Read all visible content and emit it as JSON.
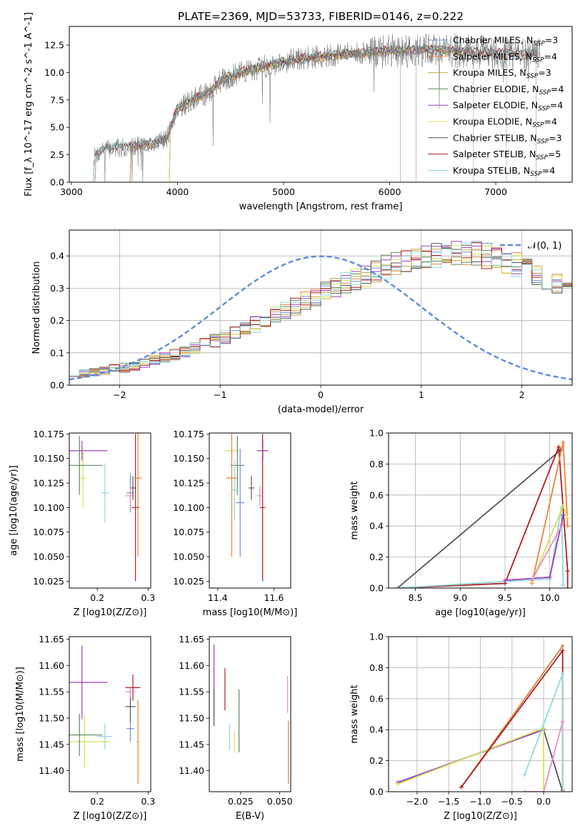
{
  "figure_title": "PLATE=2369, MJD=53733, FIBERID=0146, z=0.222",
  "colors": {
    "Chabrier MILES": "#6f8fd6",
    "Salpeter MILES": "#e8833a",
    "Kroupa MILES": "#c9a44a",
    "Chabrier ELODIE": "#5f8a5f",
    "Salpeter ELODIE": "#9a3fc3",
    "Kroupa ELODIE": "#d6e05a",
    "Chabrier STELIB": "#555555",
    "Salpeter STELIB": "#b01e1e",
    "Kroupa STELIB": "#8fd8d8",
    "extra_pink": "#e58fc0",
    "extra_orange": "#d2843f"
  },
  "chart_data": [
    {
      "id": "spectrum",
      "type": "line",
      "xlabel": "wavelength [Angstrom, rest frame]",
      "ylabel": "Flux [f_λ 10^-17 erg cm^-2 s^-1 A^-1]",
      "xlim": [
        2980,
        7720
      ],
      "ylim": [
        0,
        14.2
      ],
      "xticks": [
        3000,
        4000,
        5000,
        6000,
        7000
      ],
      "yticks": [
        "0.0",
        "2.5",
        "5.0",
        "7.5",
        "10.0",
        "12.5"
      ],
      "legend_loc": "top-right",
      "legend": [
        {
          "name": "Chabrier MILES",
          "nssp": "3"
        },
        {
          "name": "Salpeter MILES",
          "nssp": "4"
        },
        {
          "name": "Kroupa MILES",
          "nssp": "3"
        },
        {
          "name": "Chabrier ELODIE",
          "nssp": "4"
        },
        {
          "name": "Salpeter ELODIE",
          "nssp": "4"
        },
        {
          "name": "Kroupa ELODIE",
          "nssp": "4"
        },
        {
          "name": "Chabrier STELIB",
          "nssp": "3"
        },
        {
          "name": "Salpeter STELIB",
          "nssp": "5"
        },
        {
          "name": "Kroupa STELIB",
          "nssp": "4"
        }
      ],
      "continuum": {
        "x": [
          3200,
          3300,
          3400,
          3500,
          3600,
          3700,
          3800,
          3900,
          4000,
          4100,
          4200,
          4300,
          4400,
          4500,
          4600,
          4800,
          5000,
          5200,
          5400,
          5600,
          5800,
          6000,
          6200,
          6400,
          6600,
          6800,
          7000,
          7200,
          7400
        ],
        "y": [
          2.2,
          3.0,
          3.1,
          3.1,
          3.3,
          3.4,
          3.6,
          4.0,
          6.8,
          7.2,
          7.8,
          8.2,
          9.2,
          9.6,
          10.0,
          10.5,
          11.0,
          11.3,
          11.5,
          11.7,
          11.8,
          12.0,
          12.0,
          12.1,
          12.0,
          11.9,
          11.8,
          11.7,
          11.6
        ]
      },
      "model_start_x": {
        "Chabrier MILES": 3540,
        "Salpeter MILES": 3540,
        "Kroupa MILES": 3540,
        "Chabrier ELODIE": 3910,
        "Salpeter ELODIE": 3910,
        "Kroupa ELODIE": 3910,
        "Chabrier STELIB": 3210,
        "Salpeter STELIB": 3210,
        "Kroupa STELIB": 3210
      },
      "model_end_x": {
        "Chabrier MILES": 7400,
        "Salpeter MILES": 7400,
        "Kroupa MILES": 6800,
        "Chabrier ELODIE": 6800,
        "Salpeter ELODIE": 6800,
        "Kroupa ELODIE": 6800,
        "Chabrier STELIB": 7400,
        "Salpeter STELIB": 7400,
        "Kroupa STELIB": 7400
      }
    },
    {
      "id": "residuals",
      "type": "step",
      "xlabel": "(data-model)/error",
      "ylabel": "Normed distribution",
      "xlim": [
        -2.5,
        2.5
      ],
      "ylim": [
        0,
        0.48
      ],
      "xticks": [
        "−2",
        "−1",
        "0",
        "1",
        "2"
      ],
      "yticks": [
        "0.0",
        "0.1",
        "0.2",
        "0.3",
        "0.4"
      ],
      "grid": true,
      "legend_loc": "top-right",
      "legend": "𝒩(0, 1)",
      "bin_edges_start": -2.5,
      "bin_width": 0.1,
      "base_heights": [
        0.03,
        0.035,
        0.04,
        0.045,
        0.05,
        0.055,
        0.06,
        0.068,
        0.076,
        0.085,
        0.094,
        0.104,
        0.114,
        0.125,
        0.137,
        0.149,
        0.162,
        0.175,
        0.188,
        0.202,
        0.216,
        0.23,
        0.245,
        0.259,
        0.273,
        0.287,
        0.301,
        0.315,
        0.328,
        0.341,
        0.353,
        0.365,
        0.375,
        0.385,
        0.393,
        0.4,
        0.405,
        0.41,
        0.41,
        0.41,
        0.405,
        0.4,
        0.392,
        0.383,
        0.372,
        0.36,
        0.346,
        0.332,
        0.316,
        0.3,
        0.283,
        0.266,
        0.249,
        0.232,
        0.215,
        0.198,
        0.182,
        0.166,
        0.151,
        0.137,
        0.123,
        0.11,
        0.098,
        0.087,
        0.077,
        0.067,
        0.058,
        0.05,
        0.043,
        0.037,
        0.032,
        0.028,
        0.024,
        0.021,
        0.018,
        0.016,
        0.014,
        0.013,
        0.012,
        0.011
      ]
    },
    {
      "id": "Z_vs_age",
      "type": "errorbar",
      "xlabel": "Z [log10(Z/Z⊙)]",
      "ylabel": "age [log10(age/yr)]",
      "xlim": [
        0.145,
        0.305
      ],
      "ylim": [
        10.018,
        10.176
      ],
      "xticks": [
        "0.2",
        "0.3"
      ],
      "yticks": [
        "10.025",
        "10.050",
        "10.075",
        "10.100",
        "10.125",
        "10.150",
        "10.175"
      ],
      "points": [
        {
          "model": "Salpeter ELODIE",
          "x": 0.17,
          "xerr": 0.1,
          "y": 10.158,
          "yerr": 0.01
        },
        {
          "model": "Kroupa ELODIE",
          "x": 0.172,
          "xerr": 0.01,
          "y": 10.13,
          "yerr": 0.03
        },
        {
          "model": "Chabrier ELODIE",
          "x": 0.165,
          "xerr": 0.09,
          "y": 10.143,
          "yerr": 0.03
        },
        {
          "model": "Kroupa STELIB",
          "x": 0.215,
          "xerr": 0.015,
          "y": 10.115,
          "yerr": 0.03
        },
        {
          "model": "Chabrier MILES",
          "x": 0.265,
          "xerr": 0.015,
          "y": 10.115,
          "yerr": 0.02
        },
        {
          "model": "Chabrier STELIB",
          "x": 0.27,
          "xerr": 0.012,
          "y": 10.12,
          "yerr": 0.012
        },
        {
          "model": "Salpeter STELIB",
          "x": 0.275,
          "xerr": 0.015,
          "y": 10.1,
          "yerr": 0.075
        },
        {
          "model": "Salpeter MILES",
          "x": 0.28,
          "xerr": 0.015,
          "y": 10.13,
          "yerr": 0.08
        },
        {
          "model": "extra_pink",
          "x": 0.265,
          "xerr": 0.02,
          "y": 10.112,
          "yerr": 0.01
        }
      ]
    },
    {
      "id": "mass_vs_age",
      "type": "errorbar",
      "xlabel": "mass [log10(M/M⊙)]",
      "ylabel": "",
      "xlim": [
        11.37,
        11.66
      ],
      "ylim": [
        10.018,
        10.176
      ],
      "xticks": [
        "11.4",
        "11.6"
      ],
      "yticks": [
        "10.025",
        "10.050",
        "10.075",
        "10.100",
        "10.125",
        "10.150",
        "10.175"
      ],
      "points": [
        {
          "model": "Salpeter ELODIE",
          "x": 11.56,
          "xerr": 0.04,
          "y": 10.158,
          "yerr": 0.01
        },
        {
          "model": "Kroupa ELODIE",
          "x": 11.45,
          "xerr": 0.05,
          "y": 10.158,
          "yerr": 0.005
        },
        {
          "model": "Chabrier ELODIE",
          "x": 11.47,
          "xerr": 0.05,
          "y": 10.143,
          "yerr": 0.03
        },
        {
          "model": "Kroupa STELIB",
          "x": 11.46,
          "xerr": 0.02,
          "y": 10.118,
          "yerr": 0.03
        },
        {
          "model": "Chabrier MILES",
          "x": 11.48,
          "xerr": 0.03,
          "y": 10.105,
          "yerr": 0.055
        },
        {
          "model": "Chabrier STELIB",
          "x": 11.52,
          "xerr": 0.02,
          "y": 10.12,
          "yerr": 0.012
        },
        {
          "model": "Salpeter STELIB",
          "x": 11.56,
          "xerr": 0.02,
          "y": 10.1,
          "yerr": 0.075
        },
        {
          "model": "Salpeter MILES",
          "x": 11.45,
          "xerr": 0.04,
          "y": 10.13,
          "yerr": 0.08
        },
        {
          "model": "extra_pink",
          "x": 11.55,
          "xerr": 0.02,
          "y": 10.112,
          "yerr": 0.01
        }
      ]
    },
    {
      "id": "age_vs_weight",
      "type": "line",
      "xlabel": "age [log10(age/yr)]",
      "ylabel": "mass weight",
      "xlim": [
        8.2,
        10.25
      ],
      "ylim": [
        0,
        1
      ],
      "xticks": [
        "8.5",
        "9.0",
        "9.5",
        "10.0"
      ],
      "yticks": [
        "0.0",
        "0.2",
        "0.4",
        "0.6",
        "0.8",
        "1.0"
      ],
      "grid": true,
      "series": [
        {
          "model": "Chabrier STELIB",
          "x": [
            8.3,
            10.12,
            10.12
          ],
          "y": [
            0.0,
            0.89,
            0.89
          ]
        },
        {
          "model": "Salpeter STELIB",
          "x": [
            8.3,
            9.5,
            10.1,
            10.2,
            10.2
          ],
          "y": [
            0.0,
            0.03,
            0.91,
            0.11,
            0.0
          ]
        },
        {
          "model": "Salpeter MILES",
          "x": [
            9.8,
            10.15,
            10.2
          ],
          "y": [
            0.03,
            0.94,
            0.4
          ]
        },
        {
          "model": "Kroupa STELIB",
          "x": [
            8.3,
            10.0,
            10.13,
            10.15
          ],
          "y": [
            0.0,
            0.06,
            0.52,
            0.02
          ]
        },
        {
          "model": "Salpeter ELODIE",
          "x": [
            9.5,
            10.0,
            10.15
          ],
          "y": [
            0.05,
            0.07,
            0.47
          ]
        },
        {
          "model": "Kroupa ELODIE",
          "x": [
            9.8,
            10.15,
            10.2
          ],
          "y": [
            0.04,
            0.53,
            0.45
          ]
        },
        {
          "model": "extra_pink",
          "x": [
            9.8,
            10.15
          ],
          "y": [
            0.05,
            0.42
          ]
        }
      ]
    },
    {
      "id": "Z_vs_mass",
      "type": "errorbar",
      "xlabel": "Z [log10(Z/Z⊙)]",
      "ylabel": "mass [log10(M/M⊙)]",
      "xlim": [
        0.145,
        0.305
      ],
      "ylim": [
        11.36,
        11.655
      ],
      "xticks": [
        "0.2",
        "0.3"
      ],
      "yticks": [
        "11.40",
        "11.45",
        "11.50",
        "11.55",
        "11.60",
        "11.65"
      ],
      "points": [
        {
          "model": "Salpeter ELODIE",
          "x": 0.17,
          "xerr": 0.1,
          "y": 11.568,
          "yerr": 0.07
        },
        {
          "model": "Kroupa ELODIE",
          "x": 0.175,
          "xerr": 0.1,
          "y": 11.455,
          "yerr": 0.05
        },
        {
          "model": "Chabrier ELODIE",
          "x": 0.165,
          "xerr": 0.09,
          "y": 11.468,
          "yerr": 0.04
        },
        {
          "model": "Kroupa STELIB",
          "x": 0.215,
          "xerr": 0.03,
          "y": 11.465,
          "yerr": 0.025
        },
        {
          "model": "Chabrier MILES",
          "x": 0.265,
          "xerr": 0.015,
          "y": 11.48,
          "yerr": 0.025
        },
        {
          "model": "Chabrier STELIB",
          "x": 0.265,
          "xerr": 0.02,
          "y": 11.522,
          "yerr": 0.03
        },
        {
          "model": "Salpeter STELIB",
          "x": 0.27,
          "xerr": 0.03,
          "y": 11.558,
          "yerr": 0.025
        },
        {
          "model": "Salpeter MILES",
          "x": 0.28,
          "xerr": 0.005,
          "y": 11.455,
          "yerr": 0.08
        },
        {
          "model": "extra_pink",
          "x": 0.265,
          "xerr": 0.02,
          "y": 11.55,
          "yerr": 0.01
        }
      ]
    },
    {
      "id": "ebv_vs_mass",
      "type": "errorbar",
      "xlabel": "E(B-V)",
      "ylabel": "",
      "xlim": [
        0.005,
        0.057
      ],
      "ylim": [
        11.36,
        11.655
      ],
      "xticks": [
        "0.025",
        "0.050"
      ],
      "yticks": [
        "11.40",
        "11.45",
        "11.50",
        "11.55",
        "11.60",
        "11.65"
      ],
      "points": [
        {
          "model": "Salpeter ELODIE",
          "x": 0.008,
          "y": 11.57,
          "yerr": 0.07
        },
        {
          "model": "Chabrier STELIB",
          "x": 0.008,
          "y": 11.52,
          "yerr": 0.035
        },
        {
          "model": "Salpeter STELIB",
          "x": 0.015,
          "y": 11.555,
          "yerr": 0.04
        },
        {
          "model": "Kroupa STELIB",
          "x": 0.018,
          "y": 11.465,
          "yerr": 0.025
        },
        {
          "model": "Kroupa ELODIE",
          "x": 0.021,
          "y": 11.455,
          "yerr": 0.02
        },
        {
          "model": "Chabrier ELODIE",
          "x": 0.024,
          "y": 11.495,
          "yerr": 0.06
        },
        {
          "model": "extra_pink",
          "x": 0.055,
          "y": 11.545,
          "yerr": 0.035
        },
        {
          "model": "extra_orange",
          "x": 0.0555,
          "y": 11.435,
          "yerr": 0.06
        }
      ]
    },
    {
      "id": "Z_vs_weight",
      "type": "line",
      "xlabel": "Z [log10(Z/Z⊙)]",
      "ylabel": "mass weight",
      "xlim": [
        -2.45,
        0.45
      ],
      "ylim": [
        0,
        1
      ],
      "xticks": [
        "−2.0",
        "−1.5",
        "−1.0",
        "−0.5",
        "0.0"
      ],
      "yticks": [
        "0.0",
        "0.2",
        "0.4",
        "0.6",
        "0.8",
        "1.0"
      ],
      "grid": true,
      "series": [
        {
          "model": "Chabrier STELIB",
          "x": [
            -2.3,
            0.0,
            0.3
          ],
          "y": [
            0.06,
            0.4,
            0.0
          ]
        },
        {
          "model": "Salpeter ELODIE",
          "x": [
            -2.3,
            0.0
          ],
          "y": [
            0.06,
            0.4
          ]
        },
        {
          "model": "Kroupa ELODIE",
          "x": [
            -2.3,
            0.0,
            0.0
          ],
          "y": [
            0.05,
            0.41,
            0.02
          ]
        },
        {
          "model": "extra_orange",
          "x": [
            -1.3,
            0.3
          ],
          "y": [
            0.03,
            0.94
          ]
        },
        {
          "model": "Salpeter STELIB",
          "x": [
            -1.3,
            0.3,
            0.3
          ],
          "y": [
            0.03,
            0.91,
            0.01
          ]
        },
        {
          "model": "Kroupa STELIB",
          "x": [
            -0.3,
            0.3,
            0.3
          ],
          "y": [
            0.11,
            0.76,
            0.0
          ]
        },
        {
          "model": "extra_pink",
          "x": [
            -0.3,
            0.0,
            0.3
          ],
          "y": [
            0.0,
            0.0,
            0.45
          ]
        }
      ]
    }
  ]
}
